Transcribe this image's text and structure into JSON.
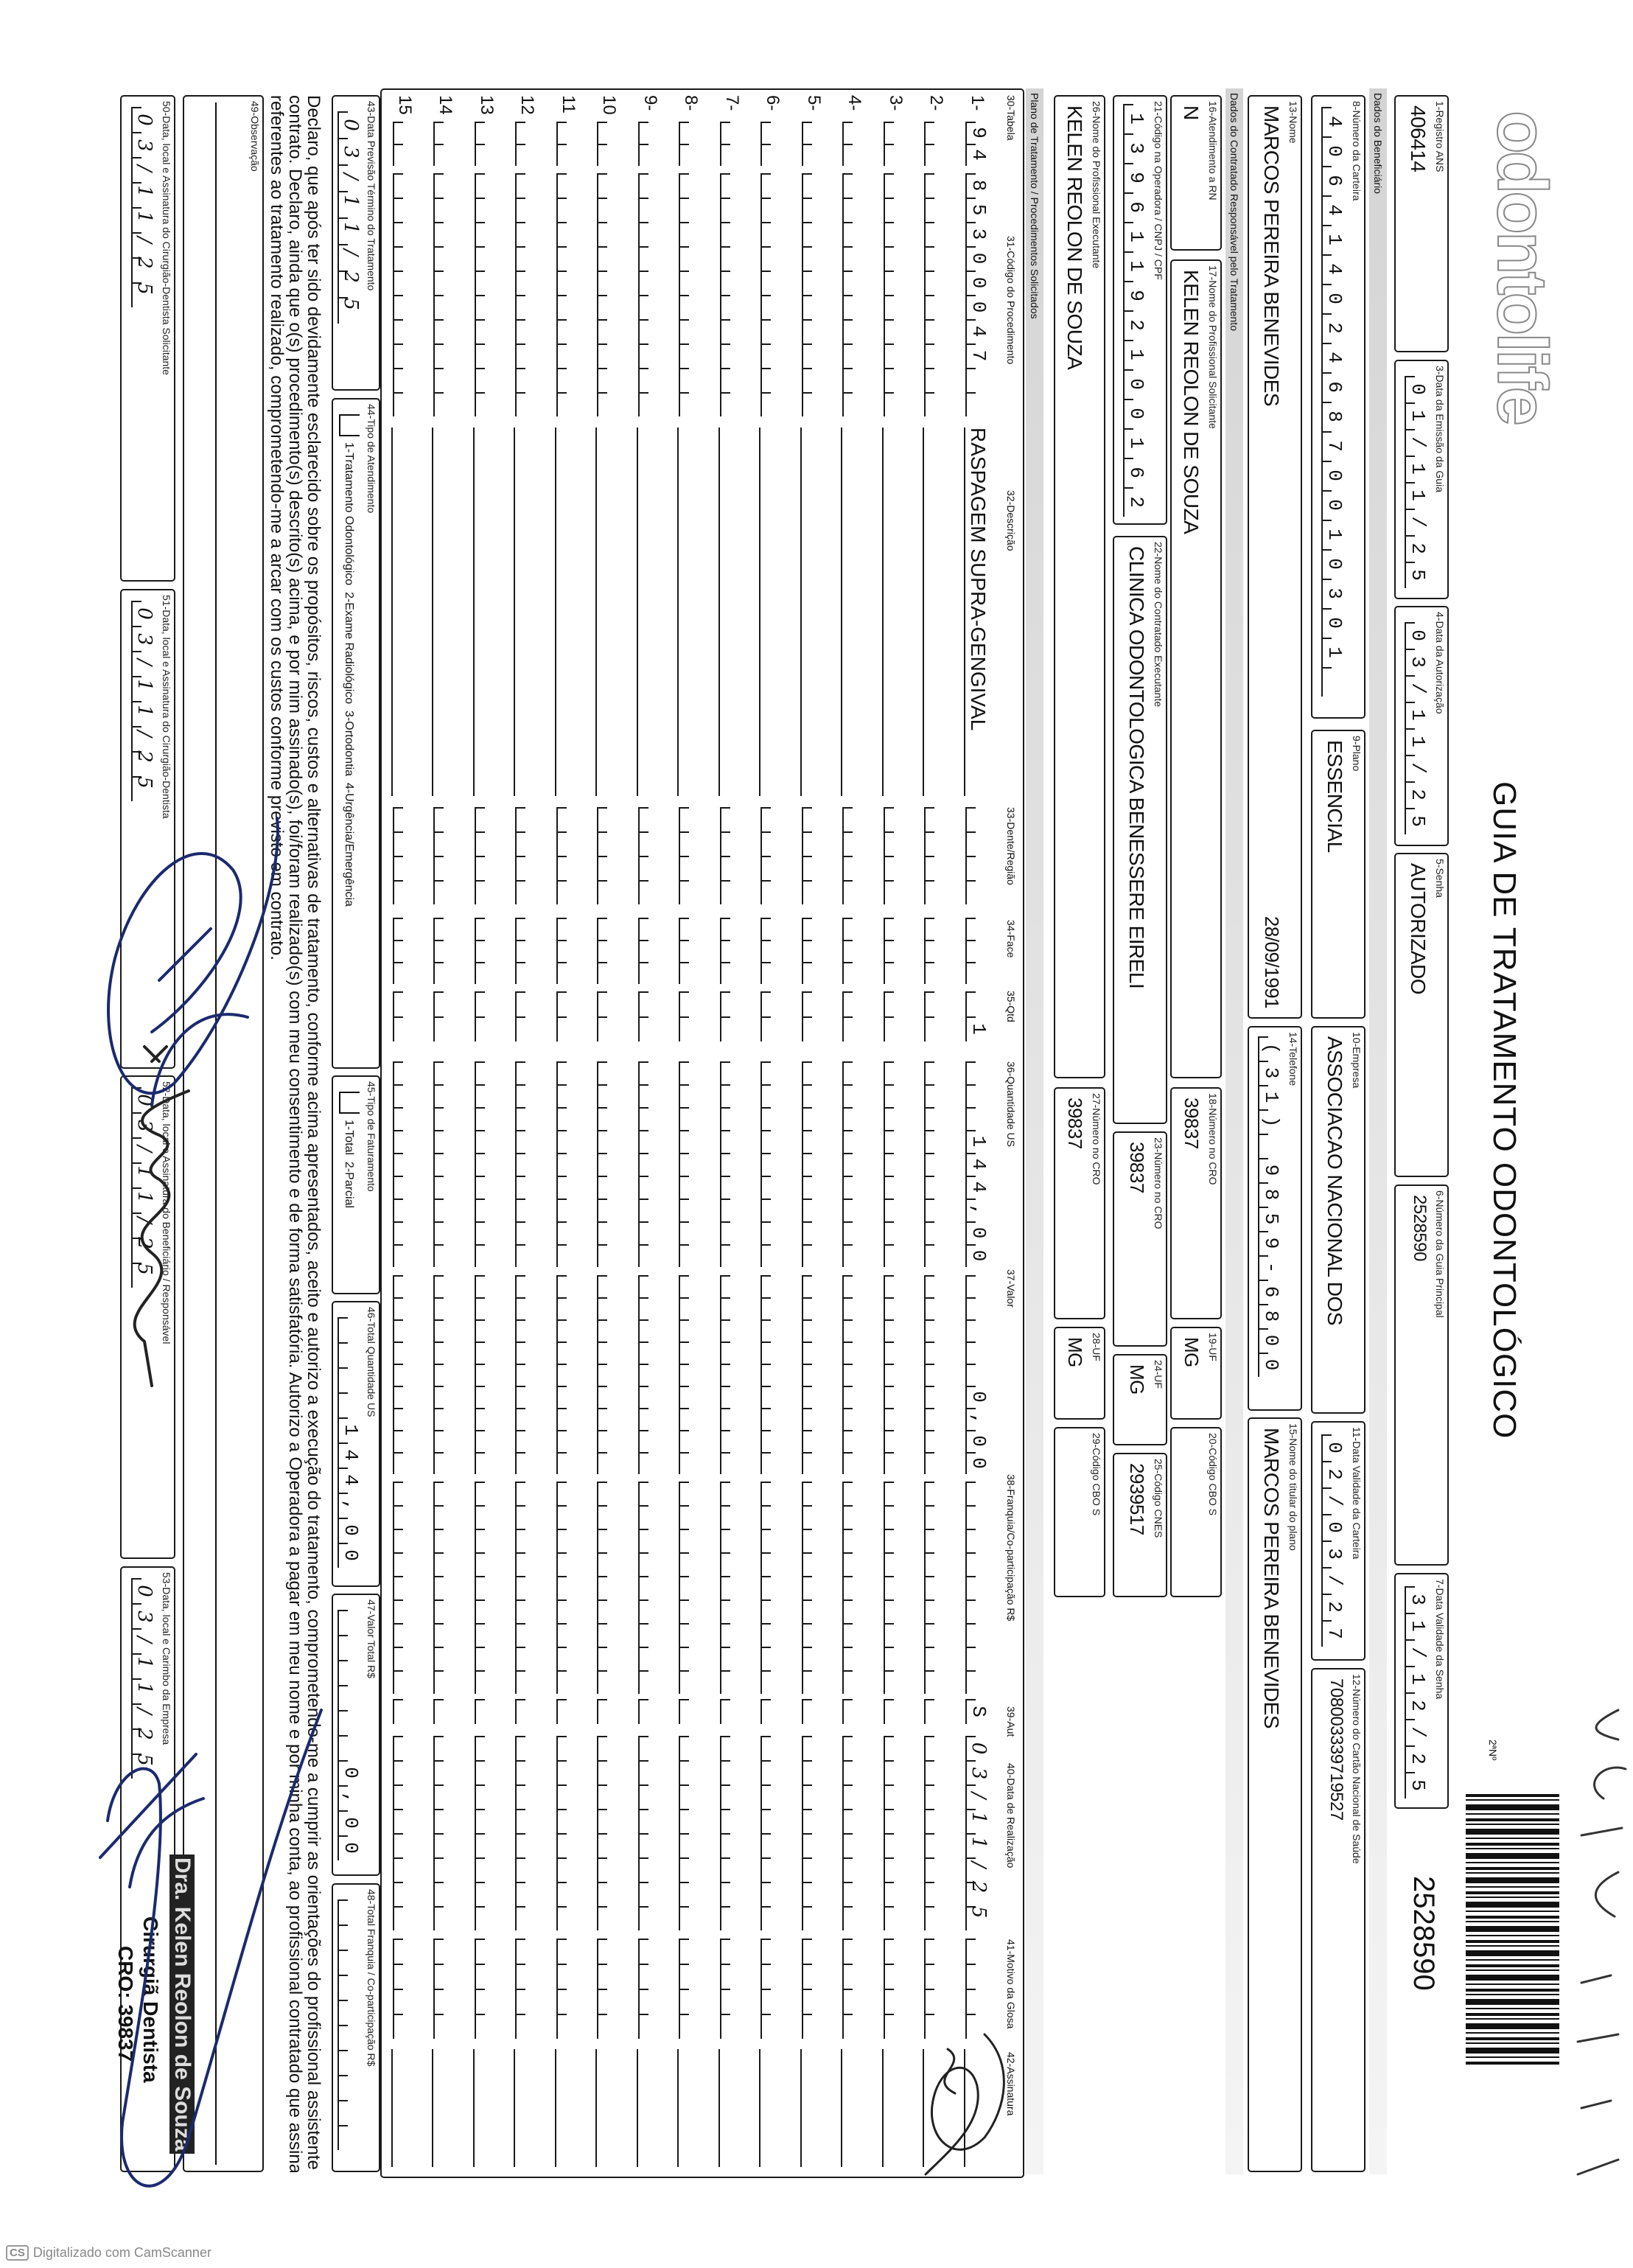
{
  "logo": {
    "text": "odontolife"
  },
  "title": "GUIA DE TRATAMENTO ODONTOLÓGICO",
  "copy_label": "2ªNº",
  "guide_number": "2528590",
  "header": {
    "registro_ans": {
      "label": "1-Registro ANS",
      "value": "406414"
    },
    "data_emissao": {
      "label": "3-Data da Emissão da Guia",
      "value": "01/11/25"
    },
    "data_autorizacao": {
      "label": "4-Data da Autorização",
      "value": "03/11/25"
    },
    "senha": {
      "label": "5-Senha",
      "value": "AUTORIZADO"
    },
    "guia_principal": {
      "label": "6-Número da Guia Principal",
      "value": "2528590"
    },
    "validade_senha": {
      "label": "7-Data Validade da Senha",
      "value": "31/12/25"
    }
  },
  "sections": {
    "beneficiario": "Dados do Beneficiário",
    "contratado": "Dados do Contratado Responsável pelo Tratamento",
    "plano": "Plano de Tratamento / Procedimentos Solicitados"
  },
  "beneficiario": {
    "carteira": {
      "label": "8-Número da Carteira",
      "value": "4064140246870010301 "
    },
    "plano": {
      "label": "9-Plano",
      "value": "ESSENCIAL"
    },
    "empresa": {
      "label": "10-Empresa",
      "value": "ASSOCIACAO NACIONAL DOS"
    },
    "validade_carteira": {
      "label": "11-Data Validade da Carteira",
      "value": "02/03/27"
    },
    "cartao_sus": {
      "label": "12-Número do Cartão Nacional de Saúde",
      "value": "708003339719527"
    },
    "nome": {
      "label": "13-Nome",
      "value": "MARCOS PEREIRA BENEVIDES",
      "birth_date": "28/09/1991"
    },
    "telefone": {
      "label": "14-Telefone",
      "value": "(31) 9859-6800"
    },
    "titular": {
      "label": "15-Nome do titular do plano",
      "value": "MARCOS PEREIRA BENEVIDES"
    }
  },
  "contratado": {
    "atendimento_rn": {
      "label": "16-Atendimento a RN",
      "value": "N"
    },
    "profissional_solicitante": {
      "label": "17-Nome do Profissional Solicitante",
      "value": "KELEN REOLON DE SOUZA"
    },
    "cro_solicitante": {
      "label": "18-Número no CRO",
      "value": "39837"
    },
    "uf_solicitante": {
      "label": "19-UF",
      "value": "MG"
    },
    "cbo_solicitante": {
      "label": "20-Código CBO S",
      "value": ""
    },
    "codigo_operadora": {
      "label": "21-Código na Operadora / CNPJ / CPF",
      "value": "13961192100162"
    },
    "contratado_executante": {
      "label": "22-Nome do Contratado Executante",
      "value": "CLINICA ODONTOLOGICA BENESSERE EIRELI"
    },
    "cro_contratado": {
      "label": "23-Número no CRO",
      "value": "39837"
    },
    "uf_contratado": {
      "label": "24-UF",
      "value": "MG"
    },
    "cnes": {
      "label": "25-Código CNES",
      "value": "2939517"
    },
    "profissional_executante": {
      "label": "26-Nome do Profissional Executante",
      "value": "KELEN REOLON DE SOUZA"
    },
    "cro_executante": {
      "label": "27-Número no CRO",
      "value": "39837"
    },
    "uf_executante": {
      "label": "28-UF",
      "value": "MG"
    },
    "cbo_executante": {
      "label": "29-Código CBO S",
      "value": ""
    }
  },
  "table": {
    "headers": [
      "30-Tabela",
      "31-Código do Procedimento",
      "32-Descrição",
      "33-Dente/Região",
      "34-Face",
      "35-Qtd",
      "36-Quantidade US",
      "37-Valor",
      "38-Franquia/Co-participação R$",
      "39-Aut",
      "40-Data de Realização",
      "41-Motivo da Glosa",
      "42-Assinatura"
    ],
    "rows": [
      {
        "n": "1-",
        "tabela": "94",
        "codigo": "85300047",
        "descricao": "RASPAGEM SUPRA-GENGIVAL",
        "dente": "",
        "face": "",
        "qtd": "1",
        "qtd_us": "144,00",
        "valor": "0,00",
        "franquia": "",
        "aut": "S",
        "data_realizacao": "03/11/25",
        "motivo_glosa": "",
        "assinatura": ""
      },
      {
        "n": "2-"
      },
      {
        "n": "3-"
      },
      {
        "n": "4-"
      },
      {
        "n": "5-"
      },
      {
        "n": "6-"
      },
      {
        "n": "7-"
      },
      {
        "n": "8-"
      },
      {
        "n": "9-"
      },
      {
        "n": "10"
      },
      {
        "n": "11"
      },
      {
        "n": "12"
      },
      {
        "n": "13"
      },
      {
        "n": "14"
      },
      {
        "n": "15"
      }
    ]
  },
  "footer_fields": {
    "previsao_termino": {
      "label": "43-Data Previsão Término do Tratamento",
      "value": "03/11/25"
    },
    "tipo_atendimento": {
      "label": "44-Tipo de Atendimento",
      "options": "1-Tratamento Odontológico  2-Exame Radiológico  3-Ortodontia  4-Urgência/Emergência",
      "value": ""
    },
    "tipo_faturamento": {
      "label": "45-Tipo de Faturamento",
      "options": "1-Total  2-Parcial",
      "value": ""
    },
    "total_us": {
      "label": "46-Total Quantidade US",
      "value": "144,00"
    },
    "valor_total": {
      "label": "47-Valor Total R$",
      "value": "0,00"
    },
    "total_franquia": {
      "label": "48-Total Franquia / Co-participação R$",
      "value": ""
    }
  },
  "declaration": [
    "Declaro, que após ter sido devidamente esclarecido sobre os propósitos, riscos, custos e alternativas de tratamento, conforme acima apresentados, aceito e autorizo a execução do tratamento, comprometendo-me a cumprir as orientações do profissional assistente e arcar com os custos previstos em",
    "contrato. Declaro, ainda que o(s) procedimento(s) descrito(s) acima, e por mim assinado(s), foi/foram realizado(s) com meu consentimento e de forma satisfatória. Autorizo a Operadora a pagar em meu nome e por minha conta, ao profissional contratado que assina esse documento, os valores",
    "referentes ao tratamento realizado, comprometendo-me a arcar com os custos conforme previsto em contrato."
  ],
  "observacao": {
    "label": "49-Observação",
    "value": ""
  },
  "signatures": {
    "solicitante": {
      "label": "50-Data, local e Assinatura do Cirurgião-Dentista Solicitante",
      "value": "03/11/25"
    },
    "dentista": {
      "label": "51-Data, local e Assinatura do Cirurgião-Dentista",
      "value": "03/11/25"
    },
    "beneficiario": {
      "label": "52-Data, local e Assinatura do Beneficiário / Responsável",
      "value": "03/11/25"
    },
    "empresa": {
      "label": "53-Data, local e Carimbo da Empresa",
      "value": "03/11/25"
    }
  },
  "stamp": {
    "name": "Dra. Kelen Reolon de Souza",
    "role": "Cirurgiã Dentista",
    "cro": "CRO: 39837"
  },
  "scanner_credit": "Digitalizado com CamScanner",
  "colors": {
    "ink": "#111111",
    "pen": "#1c2a6e",
    "section_bar": "#d4d4d4"
  }
}
